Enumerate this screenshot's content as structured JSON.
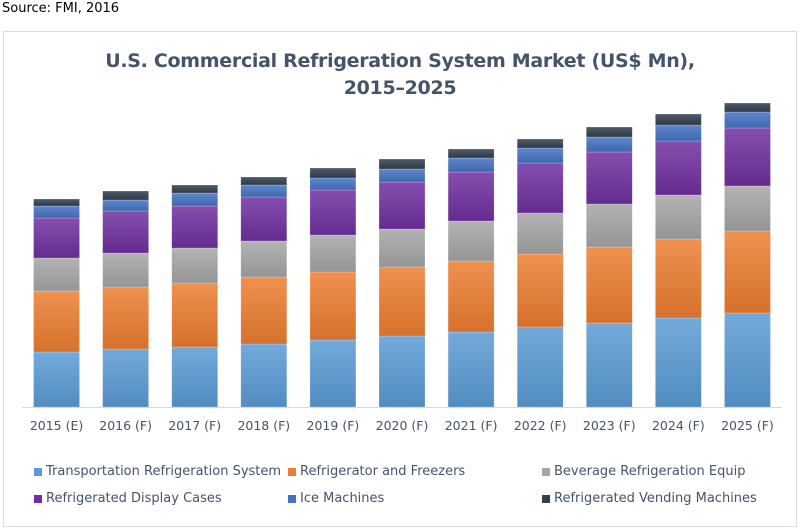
{
  "source": "Source: FMI, 2016",
  "chart_data": {
    "type": "bar",
    "stacked": true,
    "title": "U.S. Commercial Refrigeration System Market (US$ Mn), 2015–2025",
    "title_lines": [
      "U.S. Commercial Refrigeration System Market (US$ Mn),",
      "2015–2025"
    ],
    "xlabel": "",
    "ylabel": "",
    "y_axis_visible": false,
    "value_units": "relative (no y-axis scale shown)",
    "grid": false,
    "legend_position": "bottom",
    "categories": [
      "2015 (E)",
      "2016 (F)",
      "2017 (F)",
      "2018 (F)",
      "2019 (F)",
      "2020 (F)",
      "2021 (F)",
      "2022 (F)",
      "2023 (F)",
      "2024 (F)",
      "2025 (F)"
    ],
    "ylim": [
      0,
      320
    ],
    "series": [
      {
        "name": "Transportation Refrigeration System",
        "color": "#5b9bd5",
        "values": [
          55,
          58,
          60,
          63,
          67,
          71,
          75,
          80,
          84,
          89,
          94
        ]
      },
      {
        "name": "Refrigerator and Freezers",
        "color": "#ed7d31",
        "values": [
          61,
          62,
          64,
          67,
          68,
          69,
          71,
          73,
          76,
          79,
          82
        ]
      },
      {
        "name": "Beverage Refrigeration Equip",
        "color": "#a5a5a5",
        "values": [
          33,
          34,
          35,
          36,
          37,
          38,
          40,
          41,
          43,
          44,
          45
        ]
      },
      {
        "name": "Refrigerated Display Cases",
        "color": "#7030a0",
        "values": [
          40,
          42,
          42,
          44,
          45,
          47,
          49,
          50,
          52,
          54,
          58
        ]
      },
      {
        "name": "Ice Machines",
        "color": "#4472c4",
        "values": [
          12,
          11,
          13,
          12,
          12,
          13,
          14,
          15,
          15,
          16,
          16
        ]
      },
      {
        "name": "Refrigerated Vending Machines",
        "color": "#323f4f",
        "values": [
          7,
          9,
          8,
          8,
          10,
          10,
          9,
          9,
          10,
          11,
          9
        ]
      }
    ]
  }
}
